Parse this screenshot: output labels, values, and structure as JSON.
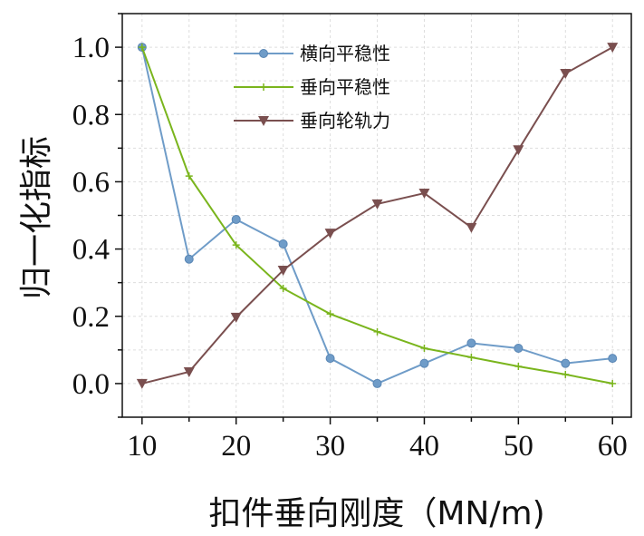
{
  "chart_data": {
    "type": "line",
    "title": "",
    "xlabel": "扣件垂向刚度（MN/m)",
    "ylabel": "归一化指标",
    "xlim": [
      7.9,
      62
    ],
    "ylim": [
      -0.1,
      1.1
    ],
    "xticks": [
      10,
      20,
      30,
      40,
      50,
      60
    ],
    "xtick_labels": [
      "10",
      "20",
      "30",
      "40",
      "50",
      "60"
    ],
    "yticks": [
      0.0,
      0.2,
      0.4,
      0.6,
      0.8,
      1.0
    ],
    "ytick_labels": [
      "0.0",
      "0.2",
      "0.4",
      "0.6",
      "0.8",
      "1.0"
    ],
    "grid": true,
    "legend_position": "top-center",
    "x": [
      10,
      15,
      20,
      25,
      30,
      35,
      40,
      45,
      50,
      55,
      60
    ],
    "series": [
      {
        "name": "横向平稳性",
        "color": "#6f9cc8",
        "marker": "circle",
        "values": [
          1.0,
          0.37,
          0.488,
          0.415,
          0.075,
          0.0,
          0.06,
          0.12,
          0.105,
          0.06,
          0.075
        ]
      },
      {
        "name": "垂向平稳性",
        "color": "#7ab51d",
        "marker": "plus",
        "values": [
          1.0,
          0.617,
          0.412,
          0.283,
          0.207,
          0.154,
          0.105,
          0.078,
          0.051,
          0.027,
          0.0
        ]
      },
      {
        "name": "垂向轮轨力",
        "color": "#7a4f4f",
        "marker": "triangle-down",
        "values": [
          0.0,
          0.035,
          0.197,
          0.337,
          0.447,
          0.534,
          0.566,
          0.464,
          0.695,
          0.922,
          1.0
        ]
      }
    ]
  }
}
